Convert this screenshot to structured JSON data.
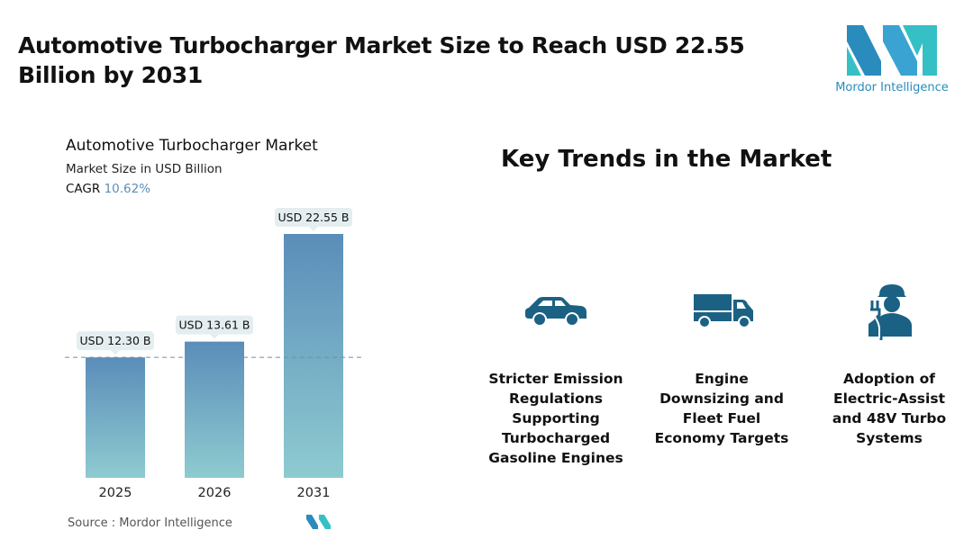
{
  "header": {
    "title": "Automotive Turbocharger Market Size to Reach USD 22.55 Billion by 2031",
    "logo_text": "Mordor Intelligence"
  },
  "chart_data": {
    "type": "bar",
    "title": "Automotive Turbocharger Market",
    "subtitle": "Market Size in USD Billion",
    "cagr_label": "CAGR",
    "cagr_value": "10.62%",
    "categories": [
      "2025",
      "2026",
      "2031"
    ],
    "values": [
      12.3,
      13.61,
      22.55
    ],
    "data_labels": [
      "USD 12.30 B",
      "USD 13.61 B",
      "USD 22.55 B"
    ],
    "ylim": [
      2.3,
      22.55
    ],
    "reference_line": 12.3,
    "colors": {
      "bar_top": "#5b8db9",
      "bar_bottom": "#8ecbd0",
      "label_bg": "#e4eef1"
    }
  },
  "source": "Source :  Mordor Intelligence",
  "trends": {
    "heading": "Key Trends in the Market",
    "items": [
      {
        "icon": "car-icon",
        "label": "Stricter Emission Regulations Supporting Turbocharged Gasoline Engines"
      },
      {
        "icon": "truck-icon",
        "label": "Engine Downsizing and Fleet Fuel Economy Targets"
      },
      {
        "icon": "engineer-plug-icon",
        "label": "Adoption of Electric-Assist and 48V Turbo Systems"
      }
    ],
    "icon_color": "#1b6184"
  }
}
